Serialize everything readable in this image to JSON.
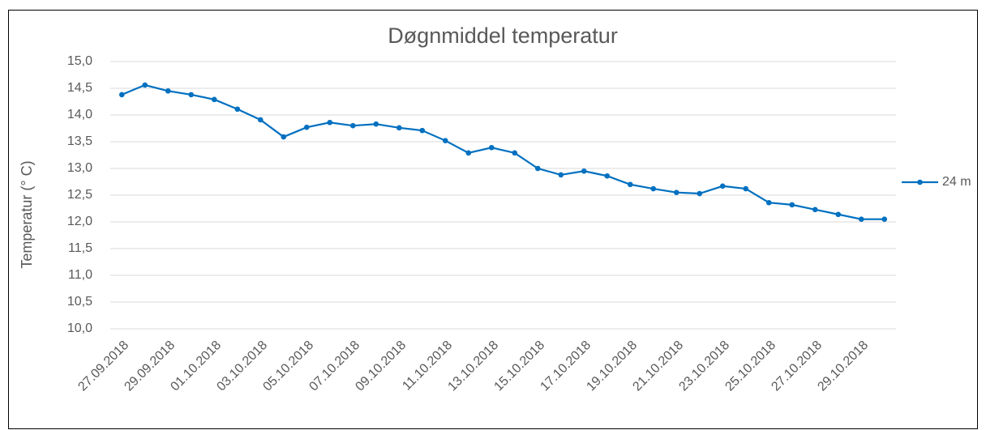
{
  "chart_data": {
    "type": "line",
    "title": "Døgnmiddel temperatur",
    "y_label": "Temperatur (° C)",
    "categories": [
      "27.09.2018",
      null,
      "29.09.2018",
      null,
      "01.10.2018",
      null,
      "03.10.2018",
      null,
      "05.10.2018",
      null,
      "07.10.2018",
      null,
      "09.10.2018",
      null,
      "11.10.2018",
      null,
      "13.10.2018",
      null,
      "15.10.2018",
      null,
      "17.10.2018",
      null,
      "19.10.2018",
      null,
      "21.10.2018",
      null,
      "23.10.2018",
      null,
      "25.10.2018",
      null,
      "27.10.2018",
      null,
      "29.10.2018",
      null
    ],
    "series": [
      {
        "name": "24 m",
        "color": "#0070c0",
        "values": [
          14.38,
          14.56,
          14.45,
          14.38,
          14.29,
          14.11,
          13.91,
          13.59,
          13.77,
          13.86,
          13.8,
          13.83,
          13.76,
          13.71,
          13.52,
          13.29,
          13.39,
          13.29,
          13.0,
          12.88,
          12.95,
          12.86,
          12.7,
          12.62,
          12.55,
          12.53,
          12.67,
          12.62,
          12.36,
          12.32,
          12.23,
          12.14,
          12.05,
          12.05
        ]
      }
    ],
    "ylim": [
      10,
      15
    ],
    "yticks": [
      {
        "value": 10,
        "label": "10,0"
      },
      {
        "value": 10.5,
        "label": "10,5"
      },
      {
        "value": 11,
        "label": "11,0"
      },
      {
        "value": 11.5,
        "label": "11,5"
      },
      {
        "value": 12,
        "label": "12,0"
      },
      {
        "value": 12.5,
        "label": "12,5"
      },
      {
        "value": 13,
        "label": "13,0"
      },
      {
        "value": 13.5,
        "label": "13,5"
      },
      {
        "value": 14,
        "label": "14,0"
      },
      {
        "value": 14.5,
        "label": "14,5"
      },
      {
        "value": 15,
        "label": "15,0"
      }
    ],
    "grid": true,
    "legend": "right"
  }
}
